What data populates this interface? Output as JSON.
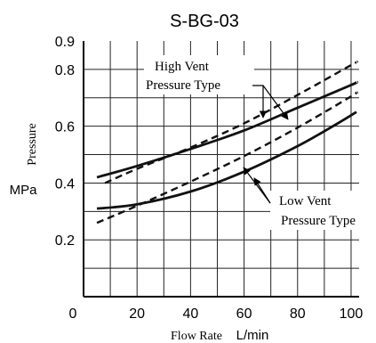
{
  "chart_data": {
    "type": "line",
    "title": "S-BG-03",
    "xlabel": "Flow Rate",
    "xunit": "L/min",
    "ylabel": "Pressure",
    "yunit": "MPa",
    "xlim": [
      0,
      103
    ],
    "ylim": [
      0,
      0.9
    ],
    "x_ticks": [
      0,
      20,
      40,
      60,
      80,
      100
    ],
    "x_tick_labels": [
      "0",
      "20",
      "40",
      "60",
      "80",
      "100"
    ],
    "y_ticks": [
      0.2,
      0.4,
      0.6,
      0.8,
      0.9
    ],
    "y_tick_labels": [
      "0.2",
      "0.4",
      "0.6",
      "0.8",
      "0.9"
    ],
    "grid": true,
    "grid_x": [
      10,
      20,
      30,
      40,
      50,
      60,
      70,
      80,
      90,
      100
    ],
    "grid_y": [
      0.1,
      0.2,
      0.3,
      0.4,
      0.5,
      0.6,
      0.7,
      0.8
    ],
    "series": [
      {
        "style": "solid",
        "color": "#111111",
        "x": [
          5,
          20,
          40,
          60,
          80,
          100,
          102
        ],
        "y": [
          0.42,
          0.46,
          0.52,
          0.585,
          0.665,
          0.745,
          0.755
        ]
      },
      {
        "style": "dashed",
        "color": "#111111",
        "x": [
          8,
          20,
          40,
          60,
          80,
          100,
          102
        ],
        "y": [
          0.4,
          0.45,
          0.525,
          0.61,
          0.71,
          0.815,
          0.825
        ]
      },
      {
        "style": "solid",
        "color": "#111111",
        "x": [
          5,
          20,
          40,
          60,
          80,
          95,
          102
        ],
        "y": [
          0.31,
          0.325,
          0.37,
          0.44,
          0.53,
          0.61,
          0.65
        ]
      },
      {
        "style": "dashed",
        "color": "#111111",
        "x": [
          5,
          20,
          40,
          60,
          80,
          100,
          102
        ],
        "y": [
          0.26,
          0.32,
          0.405,
          0.495,
          0.595,
          0.705,
          0.72
        ]
      }
    ],
    "annotations": [
      {
        "name": "high-vent-label",
        "lines": [
          "High Vent",
          "Pressure Type"
        ],
        "pointer_to": [
          48,
          0.545
        ],
        "pointer_to_2": [
          77,
          0.67
        ]
      },
      {
        "name": "low-vent-label",
        "lines": [
          "Low Vent",
          "Pressure Type"
        ],
        "pointer_to": [
          66,
          0.505
        ],
        "pointer_to_2": [
          59,
          0.45
        ]
      }
    ]
  }
}
